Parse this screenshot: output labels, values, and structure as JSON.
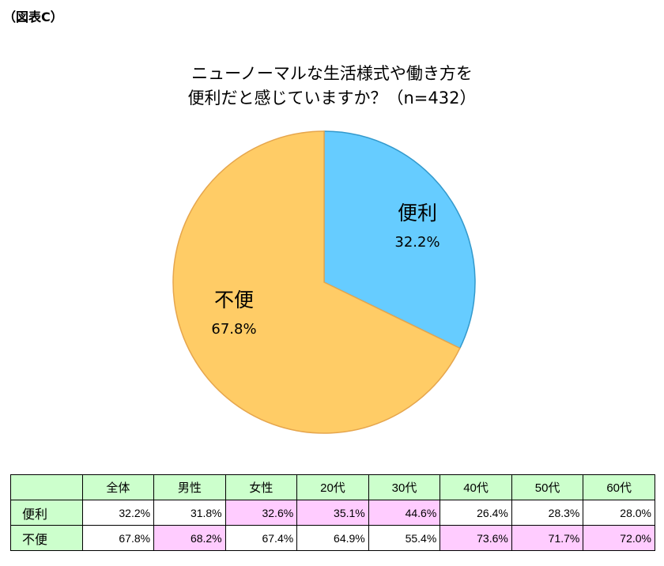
{
  "figure_label": "（図表C）",
  "chart_data": {
    "type": "pie",
    "title_lines": [
      "ニューノーマルな生活様式や働き方を",
      "便利だと感じていますか？（n=432）"
    ],
    "slices": [
      {
        "label": "便利",
        "value": 32.2,
        "value_text": "32.2%",
        "color": "#66ccff"
      },
      {
        "label": "不便",
        "value": 67.8,
        "value_text": "67.8%",
        "color": "#ffcc66"
      }
    ],
    "stroke_colors": {
      "便利": "#3399cc",
      "不便": "#e6a64d"
    }
  },
  "table": {
    "columns": [
      "",
      "全体",
      "男性",
      "女性",
      "20代",
      "30代",
      "40代",
      "50代",
      "60代"
    ],
    "rows": [
      {
        "label": "便利",
        "values": [
          "32.2%",
          "31.8%",
          "32.6%",
          "35.1%",
          "44.6%",
          "26.4%",
          "28.3%",
          "28.0%"
        ],
        "highlight": [
          false,
          false,
          true,
          true,
          true,
          false,
          false,
          false
        ]
      },
      {
        "label": "不便",
        "values": [
          "67.8%",
          "68.2%",
          "67.4%",
          "64.9%",
          "55.4%",
          "73.6%",
          "71.7%",
          "72.0%"
        ],
        "highlight": [
          false,
          true,
          false,
          false,
          false,
          true,
          true,
          true
        ]
      }
    ],
    "highlight_color": "#ffccff",
    "header_color": "#ccffcc"
  }
}
